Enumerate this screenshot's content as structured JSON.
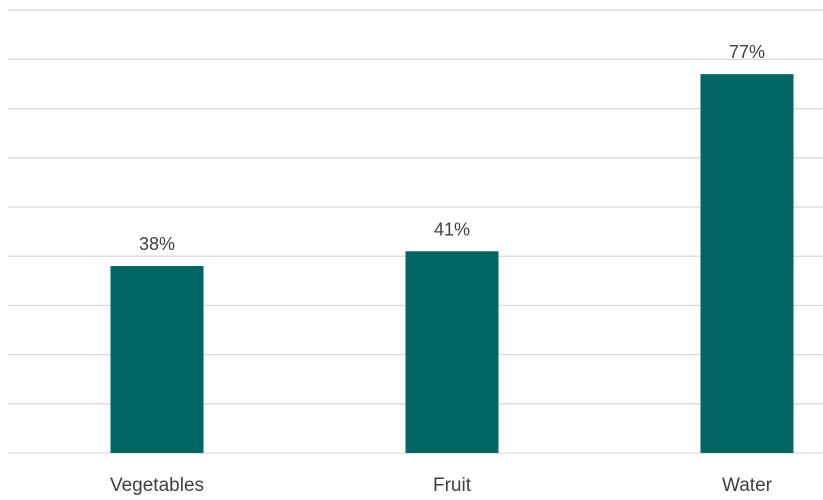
{
  "chart_data": {
    "type": "bar",
    "categories": [
      "Vegetables",
      "Fruit",
      "Water"
    ],
    "values": [
      38,
      41,
      77
    ],
    "data_labels": [
      "38%",
      "41%",
      "77%"
    ],
    "title": "",
    "xlabel": "",
    "ylabel": "",
    "ylim": [
      0,
      90
    ],
    "grid": true,
    "bar_color": "#006663",
    "gridline_color": "#d9d9d9",
    "label_color": "#404040"
  }
}
